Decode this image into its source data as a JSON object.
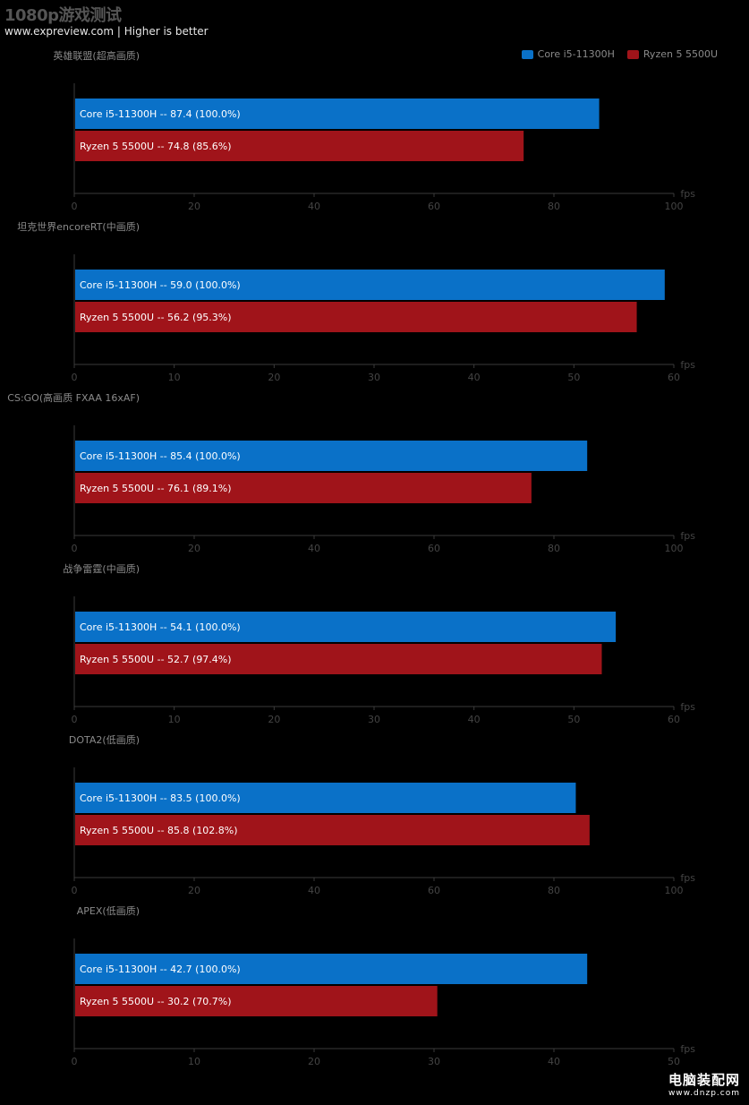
{
  "header": {
    "title": "1080p游戏测试",
    "subtitle": "www.expreview.com | Higher is better"
  },
  "legend": [
    {
      "name": "Core i5-11300H",
      "color": "#0a71c8"
    },
    {
      "name": "Ryzen 5 5500U",
      "color": "#a0141a"
    }
  ],
  "watermark": {
    "text": "电脑装配网",
    "url": "www.dnzp.com"
  },
  "chart_data": [
    {
      "type": "bar",
      "orientation": "horizontal",
      "title": "英雄联盟(超高画质)",
      "unit": "fps",
      "xlim": [
        0,
        100
      ],
      "ticks": [
        0,
        20,
        40,
        60,
        80,
        100
      ],
      "series": [
        {
          "name": "Core i5-11300H",
          "value": 87.4,
          "label": "Core i5-11300H  --  87.4 (100.0%)"
        },
        {
          "name": "Ryzen 5 5500U",
          "value": 74.8,
          "label": "Ryzen 5 5500U  --  74.8 (85.6%)"
        }
      ]
    },
    {
      "type": "bar",
      "orientation": "horizontal",
      "title": "坦克世界encoreRT(中画质)",
      "unit": "fps",
      "xlim": [
        0,
        60
      ],
      "ticks": [
        0,
        10,
        20,
        30,
        40,
        50,
        60
      ],
      "series": [
        {
          "name": "Core i5-11300H",
          "value": 59.0,
          "label": "Core i5-11300H  --  59.0 (100.0%)"
        },
        {
          "name": "Ryzen 5 5500U",
          "value": 56.2,
          "label": "Ryzen 5 5500U  --  56.2 (95.3%)"
        }
      ]
    },
    {
      "type": "bar",
      "orientation": "horizontal",
      "title": "CS:GO(高画质 FXAA 16xAF)",
      "unit": "fps",
      "xlim": [
        0,
        100
      ],
      "ticks": [
        0,
        20,
        40,
        60,
        80,
        100
      ],
      "series": [
        {
          "name": "Core i5-11300H",
          "value": 85.4,
          "label": "Core i5-11300H  --  85.4 (100.0%)"
        },
        {
          "name": "Ryzen 5 5500U",
          "value": 76.1,
          "label": "Ryzen 5 5500U  --  76.1 (89.1%)"
        }
      ]
    },
    {
      "type": "bar",
      "orientation": "horizontal",
      "title": "战争雷霆(中画质)",
      "unit": "fps",
      "xlim": [
        0,
        60
      ],
      "ticks": [
        0,
        10,
        20,
        30,
        40,
        50,
        60
      ],
      "series": [
        {
          "name": "Core i5-11300H",
          "value": 54.1,
          "label": "Core i5-11300H  --  54.1 (100.0%)"
        },
        {
          "name": "Ryzen 5 5500U",
          "value": 52.7,
          "label": "Ryzen 5 5500U  --  52.7 (97.4%)"
        }
      ]
    },
    {
      "type": "bar",
      "orientation": "horizontal",
      "title": "DOTA2(低画质)",
      "unit": "fps",
      "xlim": [
        0,
        100
      ],
      "ticks": [
        0,
        20,
        40,
        60,
        80,
        100
      ],
      "series": [
        {
          "name": "Core i5-11300H",
          "value": 83.5,
          "label": "Core i5-11300H  --  83.5 (100.0%)"
        },
        {
          "name": "Ryzen 5 5500U",
          "value": 85.8,
          "label": "Ryzen 5 5500U  --  85.8 (102.8%)"
        }
      ]
    },
    {
      "type": "bar",
      "orientation": "horizontal",
      "title": "APEX(低画质)",
      "unit": "fps",
      "xlim": [
        0,
        50
      ],
      "ticks": [
        0,
        10,
        20,
        30,
        40,
        50
      ],
      "series": [
        {
          "name": "Core i5-11300H",
          "value": 42.7,
          "label": "Core i5-11300H  --  42.7 (100.0%)"
        },
        {
          "name": "Ryzen 5 5500U",
          "value": 30.2,
          "label": "Ryzen 5 5500U  --  30.2 (70.7%)"
        }
      ]
    }
  ]
}
